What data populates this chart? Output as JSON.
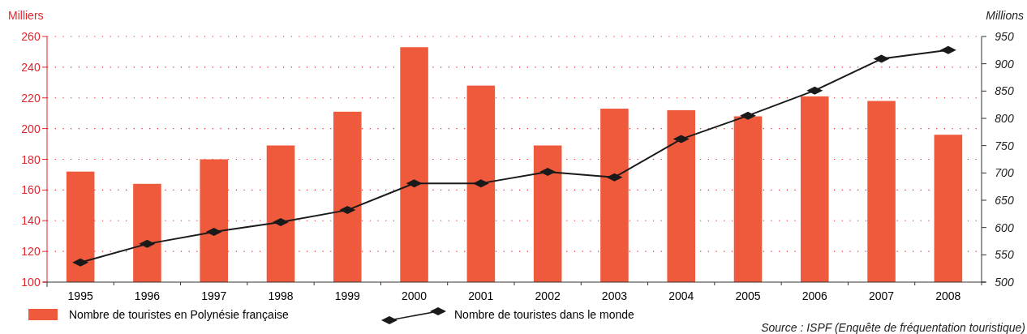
{
  "chart_data": {
    "type": "bar",
    "categories": [
      "1995",
      "1996",
      "1997",
      "1998",
      "1999",
      "2000",
      "2001",
      "2002",
      "2003",
      "2004",
      "2005",
      "2006",
      "2007",
      "2008"
    ],
    "series": [
      {
        "name": "Nombre de touristes en Polynésie française",
        "color": "#ef5a3d",
        "values": [
          172,
          164,
          180,
          189,
          211,
          253,
          228,
          189,
          213,
          212,
          208,
          221,
          218,
          196
        ]
      },
      {
        "name": "Nombre de touristes dans le monde",
        "type": "line",
        "axis": "y2",
        "color": "#1a1a1a",
        "marker": "diamond",
        "values": [
          536,
          570,
          592,
          610,
          632,
          681,
          681,
          702,
          692,
          762,
          805,
          851,
          909,
          925
        ]
      }
    ],
    "ylabel": "Milliers",
    "y2label": "Millions",
    "ylim": [
      100,
      260
    ],
    "yticks": [
      100,
      120,
      140,
      160,
      180,
      200,
      220,
      240,
      260
    ],
    "y2lim": [
      500,
      950
    ],
    "y2ticks": [
      500,
      550,
      600,
      650,
      700,
      750,
      800,
      850,
      900,
      950
    ],
    "grid": "y",
    "legend": "bottom",
    "annotations": [
      "Source : ISPF (Enquête de fréquentation touristique)"
    ]
  }
}
